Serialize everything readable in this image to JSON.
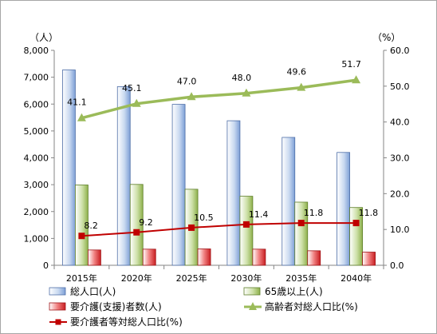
{
  "chart_data": {
    "type": "bar",
    "categories": [
      "2015年",
      "2020年",
      "2025年",
      "2030年",
      "2035年",
      "2040年"
    ],
    "left_axis": {
      "unit_label": "（人）",
      "ylim": [
        0,
        8000
      ],
      "ticks": [
        "0",
        "1,000",
        "2,000",
        "3,000",
        "4,000",
        "5,000",
        "6,000",
        "7,000",
        "8,000"
      ]
    },
    "right_axis": {
      "unit_label": "（%）",
      "ylim": [
        0,
        60
      ],
      "ticks": [
        "0.0",
        "10.0",
        "20.0",
        "30.0",
        "40.0",
        "50.0",
        "60.0"
      ]
    },
    "series": [
      {
        "name": "総人口(人)",
        "kind": "bar",
        "axis": "left",
        "color": "#8EB4E3",
        "values": [
          7270,
          6650,
          5990,
          5380,
          4760,
          4200
        ]
      },
      {
        "name": "65歳以上(人)",
        "kind": "bar",
        "axis": "left",
        "color": "#9BBB59",
        "values": [
          2990,
          3010,
          2830,
          2570,
          2350,
          2150
        ]
      },
      {
        "name": "要介護(支援)者数(人)",
        "kind": "bar",
        "axis": "left",
        "color": "#E3272B",
        "values": [
          570,
          600,
          610,
          600,
          540,
          490
        ]
      },
      {
        "name": "高齢者対総人口比(%)",
        "kind": "line",
        "axis": "right",
        "color": "#9BBB59",
        "marker": "triangle",
        "values": [
          41.1,
          45.1,
          47.0,
          48.0,
          49.6,
          51.7
        ],
        "labels": [
          "41.1",
          "45.1",
          "47.0",
          "48.0",
          "49.6",
          "51.7"
        ]
      },
      {
        "name": "要介護者等対総人口比(%)",
        "kind": "line",
        "axis": "right",
        "color": "#C00000",
        "marker": "square",
        "values": [
          8.2,
          9.2,
          10.5,
          11.4,
          11.8,
          11.8
        ],
        "labels": [
          "8.2",
          "9.2",
          "10.5",
          "11.4",
          "11.8",
          "11.8"
        ]
      }
    ],
    "legend": "bottom",
    "grid": false
  }
}
